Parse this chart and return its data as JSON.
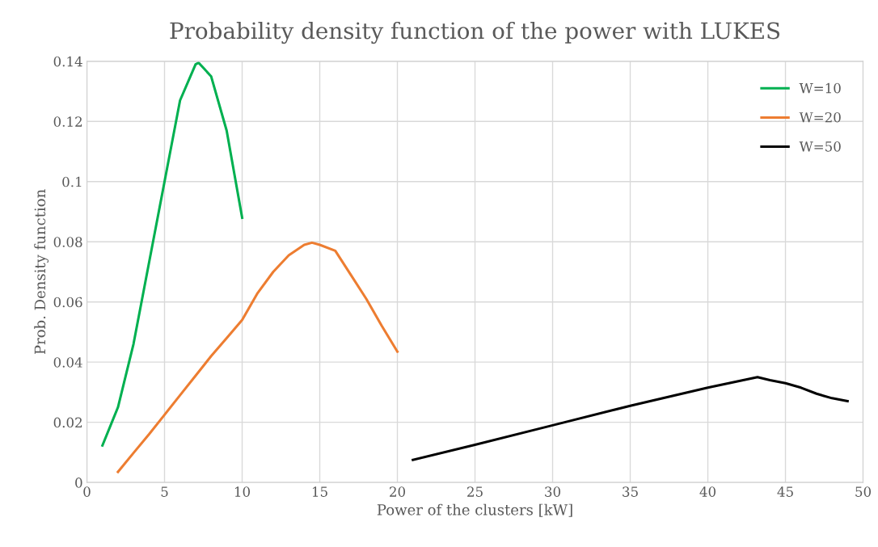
{
  "chart_data": {
    "type": "line",
    "title": "Probability density function of the power with LUKES",
    "xlabel": "Power of the clusters [kW]",
    "ylabel": "Prob. Density function",
    "xlim": [
      0,
      50
    ],
    "xticks": [
      0,
      5,
      10,
      15,
      20,
      25,
      30,
      35,
      40,
      45,
      50
    ],
    "ylim": [
      0,
      0.14
    ],
    "yticks": [
      0,
      0.02,
      0.04,
      0.06,
      0.08,
      {
        "value": 0.1,
        "label": "0.1"
      },
      0.12,
      0.14
    ],
    "grid": true,
    "legend": "top right",
    "marker": "none",
    "line_style": "solid",
    "series": [
      {
        "name": "W=10",
        "color": "#00b050",
        "x": [
          1,
          2,
          3,
          4,
          5,
          6,
          7,
          7.2,
          8,
          9,
          10
        ],
        "values": [
          0.0123,
          0.025,
          0.046,
          0.073,
          0.1,
          0.127,
          0.139,
          0.1395,
          0.135,
          0.117,
          0.088
        ]
      },
      {
        "name": "W=20",
        "color": "#ed7d31",
        "x": [
          2,
          3,
          4,
          5,
          6,
          7,
          8,
          9,
          10,
          11,
          12,
          13,
          14,
          14.5,
          15,
          16,
          17,
          18,
          19,
          20
        ],
        "values": [
          0.0035,
          0.0098,
          0.016,
          0.0225,
          0.029,
          0.0355,
          0.042,
          0.048,
          0.054,
          0.063,
          0.07,
          0.0755,
          0.079,
          0.0797,
          0.079,
          0.077,
          0.069,
          0.061,
          0.052,
          0.0435
        ]
      },
      {
        "name": "W=50",
        "color": "#000000",
        "x": [
          21,
          25,
          30,
          35,
          40,
          43.2,
          44,
          45,
          46,
          47,
          48,
          49
        ],
        "values": [
          0.0075,
          0.0125,
          0.019,
          0.0255,
          0.0315,
          0.035,
          0.034,
          0.033,
          0.0315,
          0.0295,
          0.028,
          0.027
        ]
      }
    ]
  }
}
